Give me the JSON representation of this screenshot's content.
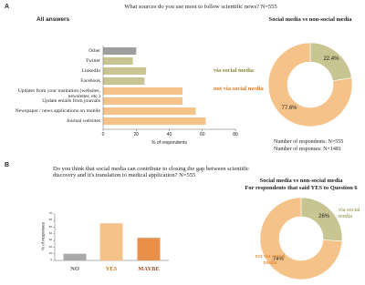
{
  "chart_data": [
    {
      "type": "hbar",
      "panel": "A",
      "title": "What sources do you use most to follow scientific news? N=555",
      "subtitle": "All answers",
      "categories": [
        "Other",
        "Twitter",
        "LinkedIn",
        "Facebook",
        "Updates from your institution (websites, newsletter, etc.)",
        "Update emails from journals",
        "Newspaper / news applications on mobile",
        "Journal websites"
      ],
      "values": [
        20,
        18,
        26,
        25,
        48,
        48,
        56,
        62
      ],
      "colors": [
        "#9e9e9e",
        "#c9c592",
        "#c9c592",
        "#c9c592",
        "#f5c389",
        "#f5c389",
        "#f5c389",
        "#f5c389"
      ],
      "xlim": [
        0,
        80
      ],
      "xticks": [
        0,
        20,
        40,
        60,
        80
      ],
      "xlabel": "% of respondents",
      "annotations": [
        {
          "text": "via social media",
          "color": "#8a8a3a"
        },
        {
          "text": "not via social media",
          "color": "#e07a1f"
        }
      ]
    },
    {
      "type": "donut",
      "title": "Social media vs non-social media",
      "values": [
        22.4,
        77.6
      ],
      "value_labels": [
        "22.4%",
        "77.6%"
      ],
      "colors": [
        "#c9c592",
        "#f5c389"
      ],
      "notes": [
        "Number of respondents: N=555",
        "Number of responses: N=1481"
      ]
    },
    {
      "type": "bar",
      "panel": "B",
      "title": "Do you think that social media can contribute to closing the gap between scientific discovery and it's translation to medical application? N=555",
      "categories": [
        "NO",
        "YES",
        "MAYBE"
      ],
      "values": [
        10,
        56,
        34
      ],
      "colors": [
        "#a9a9a9",
        "#f5c389",
        "#e8904a"
      ],
      "label_colors": [
        "#555555",
        "#d4761c",
        "#a0522d"
      ],
      "ylim": [
        0,
        70
      ],
      "yticks": [
        0,
        10,
        20,
        30,
        40,
        50,
        60,
        70
      ],
      "ylabel": "% of responses"
    },
    {
      "type": "donut",
      "title": "Social media vs non-social media",
      "subtitle": "For respondents that said YES to Question 6",
      "categories": [
        "via social media",
        "not via social media"
      ],
      "label_colors": [
        "#8a8a3a",
        "#e07a1f"
      ],
      "values": [
        26,
        74
      ],
      "value_labels": [
        "26%",
        "74%"
      ],
      "colors": [
        "#c9c592",
        "#f5c389"
      ]
    }
  ]
}
